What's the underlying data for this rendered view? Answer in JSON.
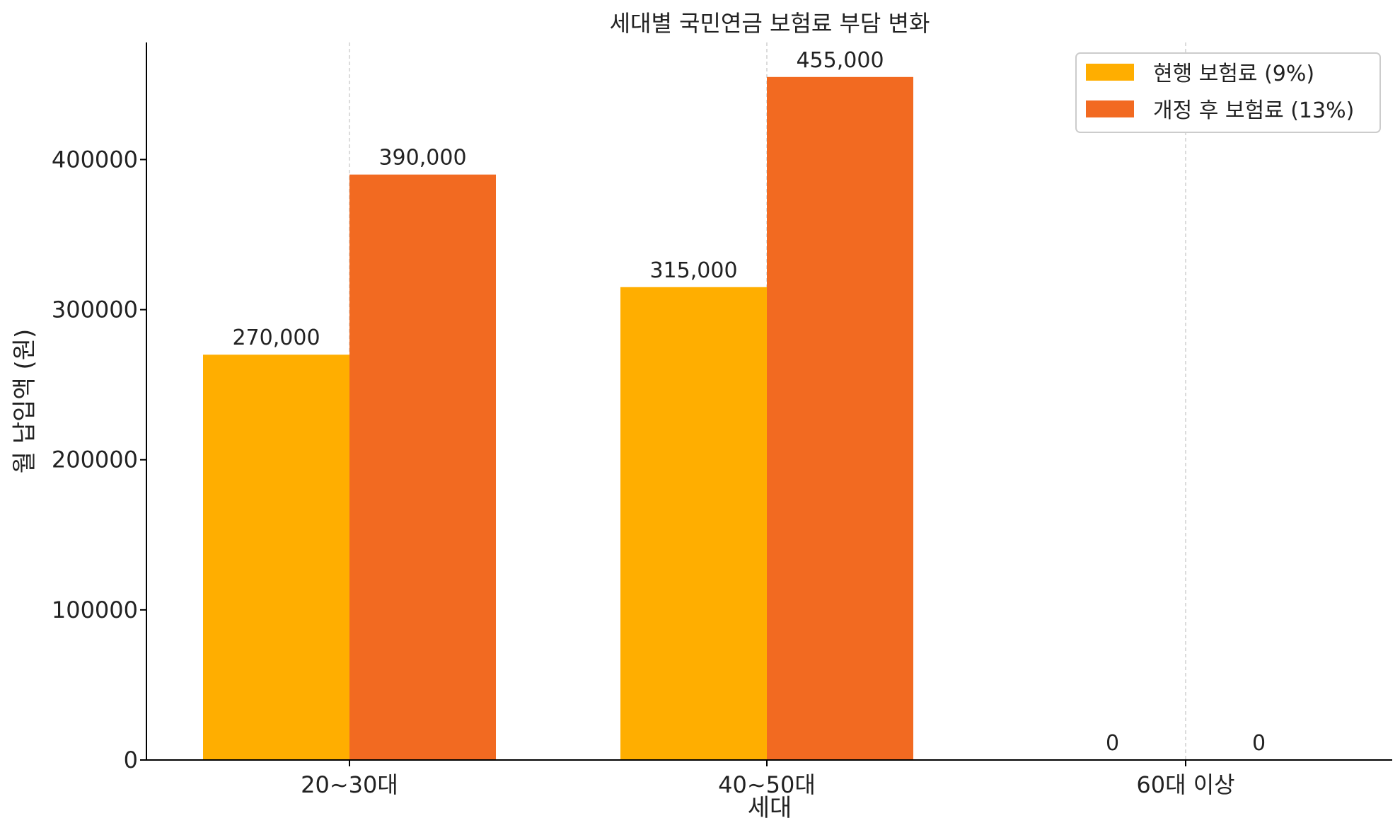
{
  "chart_data": {
    "type": "bar",
    "title": "세대별 국민연금 보험료 부담 변화",
    "xlabel": "세대",
    "ylabel": "월 납입액 (원)",
    "categories": [
      "20~30대",
      "40~50대",
      "60대 이상"
    ],
    "series": [
      {
        "name": "현행 보험료 (9%)",
        "color": "#FFAE00",
        "values": [
          270000,
          315000,
          0
        ],
        "labels": [
          "270,000",
          "315,000",
          "0"
        ]
      },
      {
        "name": "개정 후 보험료 (13%)",
        "color": "#F26A21",
        "values": [
          390000,
          455000,
          0
        ],
        "labels": [
          "390,000",
          "455,000",
          "0"
        ]
      }
    ],
    "ylim": [
      0,
      478000
    ],
    "yticks": [
      0,
      100000,
      200000,
      300000,
      400000
    ],
    "ytick_labels": [
      "0",
      "100000",
      "200000",
      "300000",
      "400000"
    ],
    "grid": "vertical dashed at category centers",
    "legend": "top-right"
  }
}
